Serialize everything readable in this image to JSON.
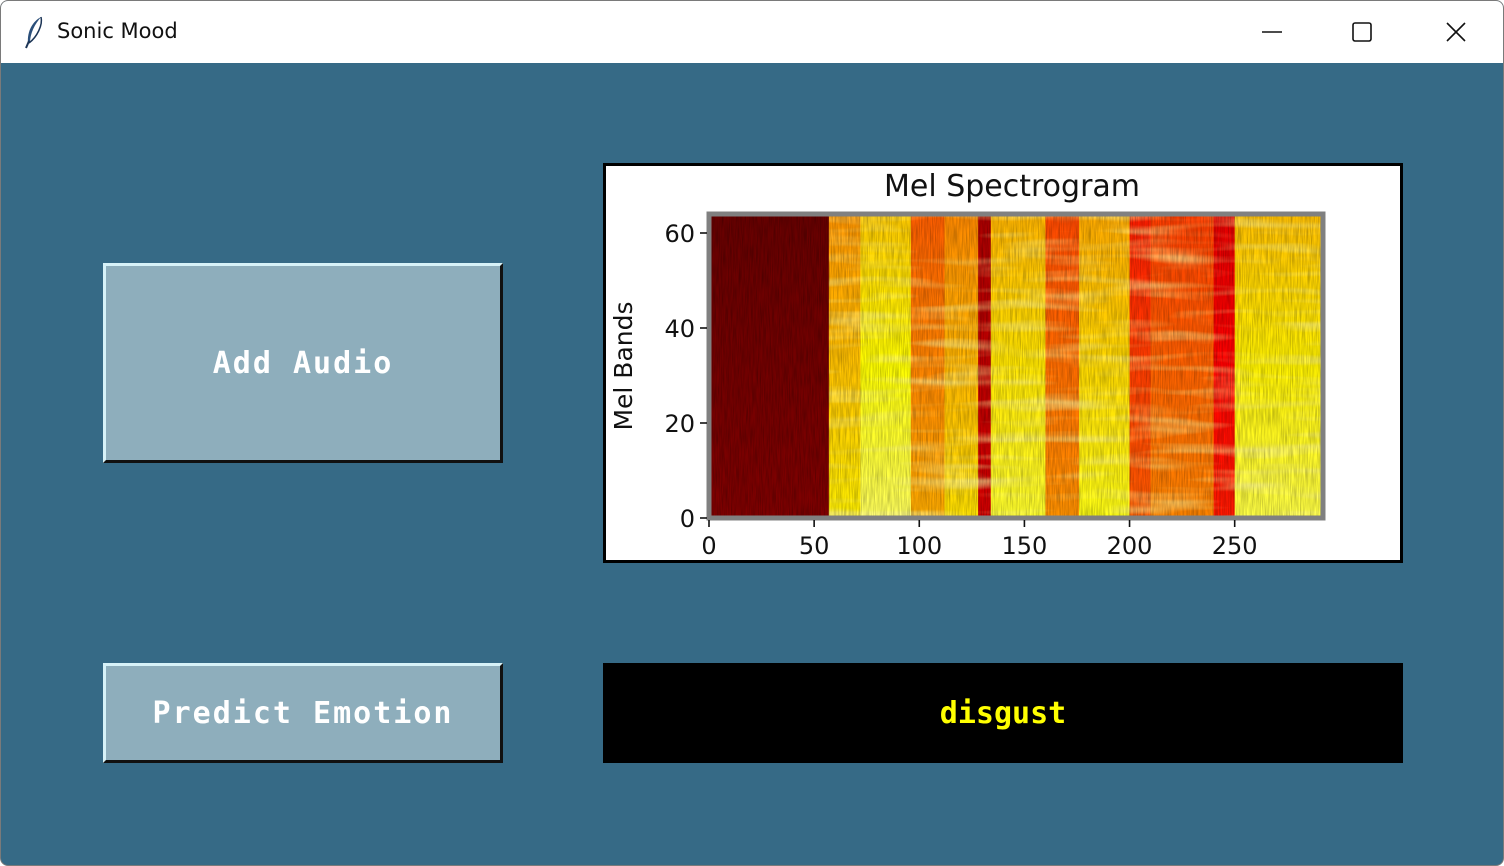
{
  "window": {
    "title": "Sonic Mood",
    "app_icon": "feather-icon",
    "controls": [
      "minimize-icon",
      "maximize-icon",
      "close-icon"
    ]
  },
  "buttons": {
    "add_audio": "Add Audio",
    "predict_emotion": "Predict Emotion"
  },
  "result": {
    "label": "disgust",
    "color": "#ffff00"
  },
  "colors": {
    "background": "#366a86",
    "button": "#8eaebc",
    "result_background": "#000000"
  },
  "chart_data": {
    "type": "heatmap",
    "title": "Mel Spectrogram",
    "xlabel": "",
    "ylabel": "Mel Bands",
    "xlim": [
      0,
      292
    ],
    "ylim": [
      0,
      64
    ],
    "x_ticks": [
      0,
      50,
      100,
      150,
      200,
      250
    ],
    "y_ticks": [
      0,
      20,
      40,
      60
    ],
    "colormap": "hot",
    "segments": [
      {
        "start": 0,
        "end": 57,
        "intensity": 0.18
      },
      {
        "start": 57,
        "end": 72,
        "intensity": 0.72
      },
      {
        "start": 72,
        "end": 96,
        "intensity": 0.82
      },
      {
        "start": 96,
        "end": 112,
        "intensity": 0.62
      },
      {
        "start": 112,
        "end": 128,
        "intensity": 0.7
      },
      {
        "start": 128,
        "end": 134,
        "intensity": 0.3
      },
      {
        "start": 134,
        "end": 160,
        "intensity": 0.78
      },
      {
        "start": 160,
        "end": 176,
        "intensity": 0.58
      },
      {
        "start": 176,
        "end": 200,
        "intensity": 0.76
      },
      {
        "start": 200,
        "end": 210,
        "intensity": 0.5
      },
      {
        "start": 210,
        "end": 240,
        "intensity": 0.56
      },
      {
        "start": 240,
        "end": 250,
        "intensity": 0.4
      },
      {
        "start": 250,
        "end": 292,
        "intensity": 0.8
      }
    ]
  }
}
